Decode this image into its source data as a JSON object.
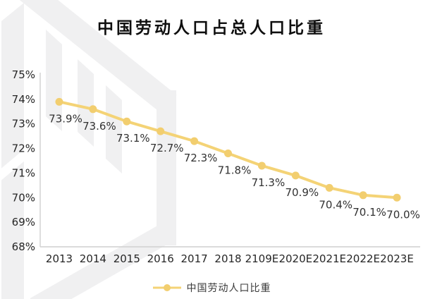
{
  "title": "中国劳动人口占总人口比重",
  "legend": {
    "label": "中国劳动人口比重"
  },
  "colors": {
    "line": "#F4D376",
    "marker": "#F2CE6F",
    "axis": "#CFCFCF",
    "tick_text": "#262626",
    "data_label": "#323232",
    "title_text": "#0F0F0F",
    "watermark": "#F0F0F1"
  },
  "chart_data": {
    "type": "line",
    "title": "中国劳动人口占总人口比重",
    "categories": [
      "2013",
      "2014",
      "2015",
      "2016",
      "2017",
      "2018",
      "2109E",
      "2020E",
      "2021E",
      "2022E",
      "2023E"
    ],
    "series": [
      {
        "name": "中国劳动人口比重",
        "values": [
          73.9,
          73.6,
          73.1,
          72.7,
          72.3,
          71.8,
          71.3,
          70.9,
          70.4,
          70.1,
          70.0
        ]
      }
    ],
    "point_labels": [
      "73.9%",
      "73.6%",
      "73.1%",
      "72.7%",
      "72.3%",
      "71.8%",
      "71.3%",
      "70.9%",
      "70.4%",
      "70.1%",
      "70.0%"
    ],
    "y_ticks": [
      "75%",
      "74%",
      "73%",
      "72%",
      "71%",
      "70%",
      "69%",
      "68%"
    ],
    "ylim": [
      68,
      75
    ],
    "xlabel": "",
    "ylabel": "",
    "grid": false,
    "legend_position": "bottom"
  }
}
